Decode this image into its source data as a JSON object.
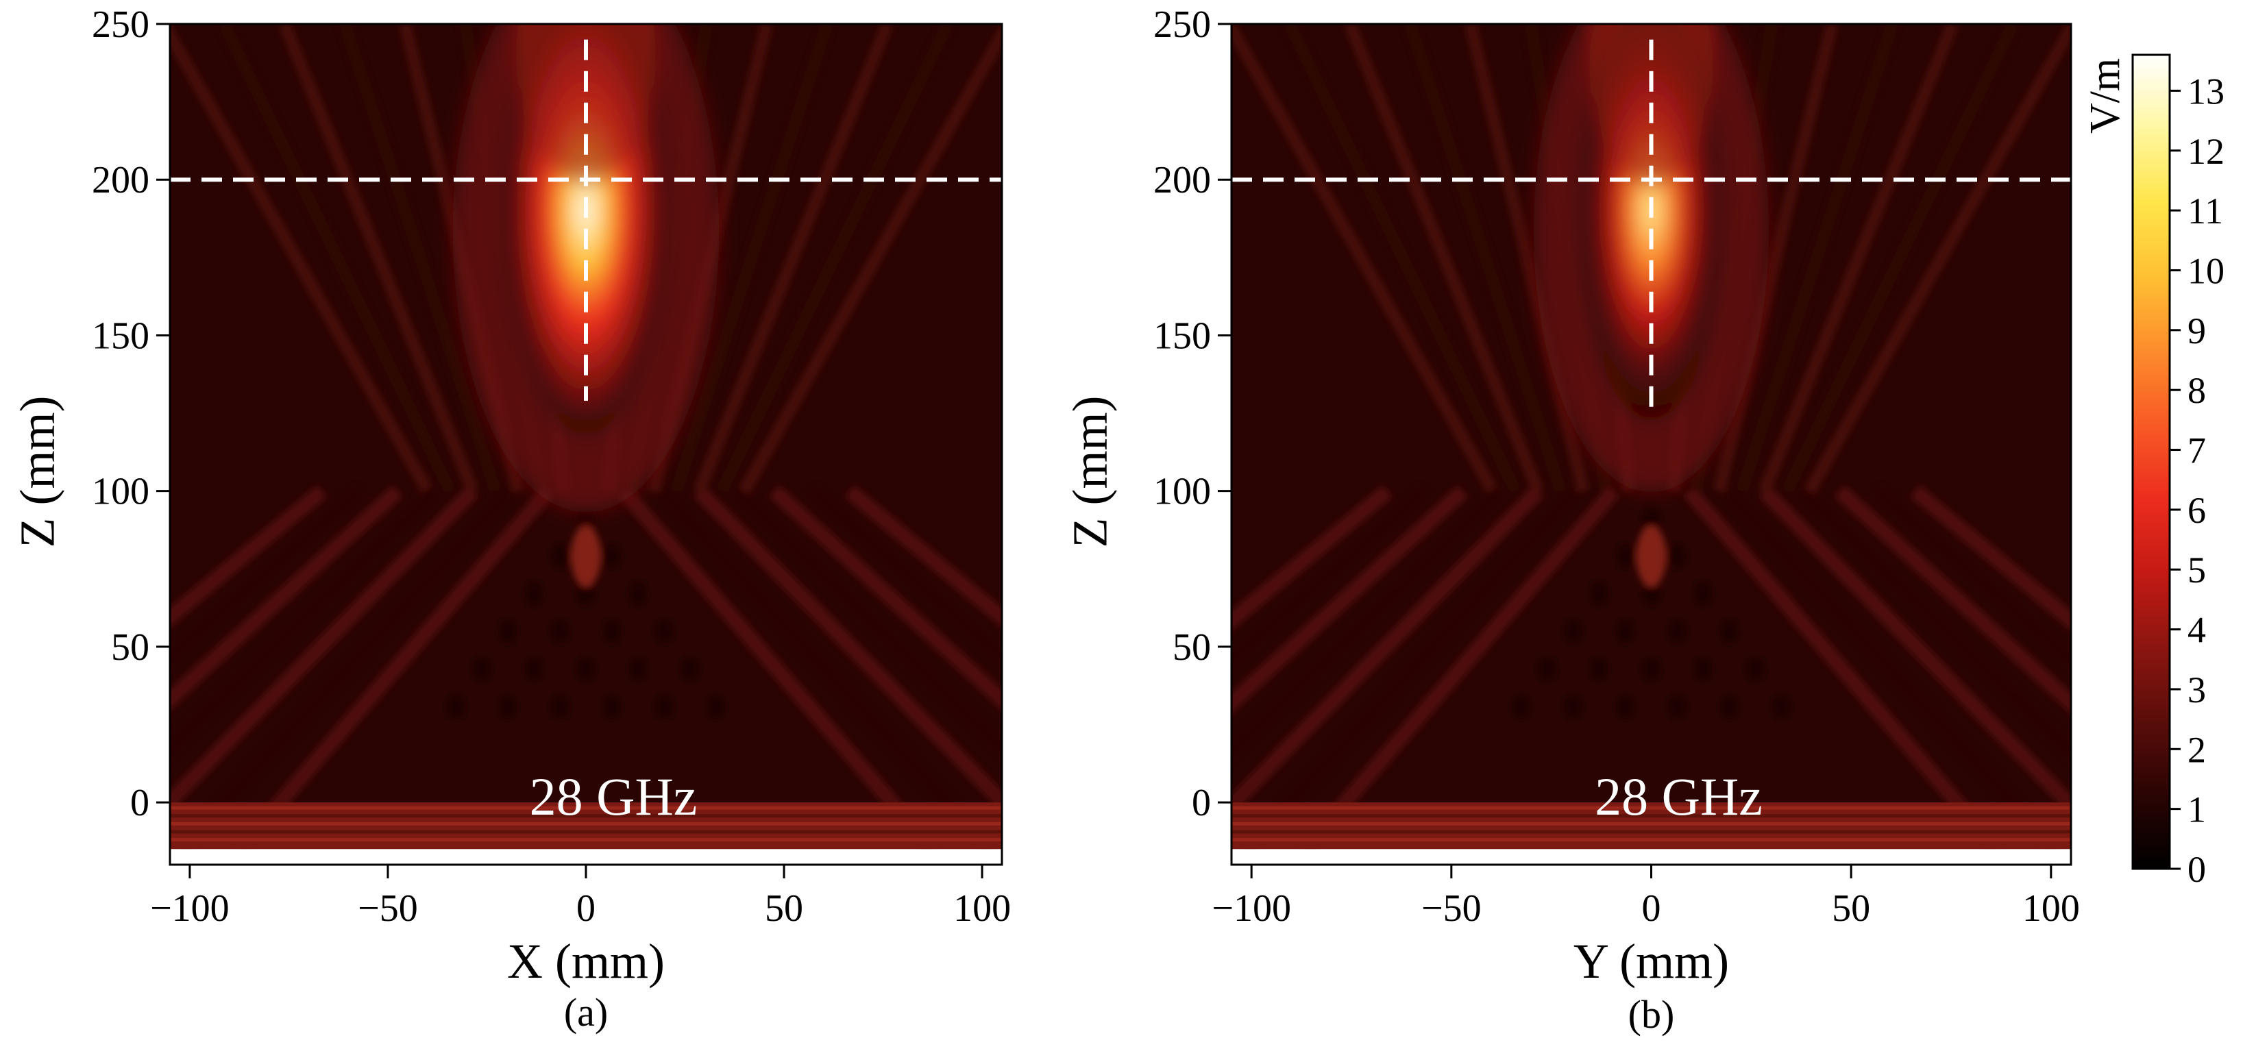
{
  "figure": {
    "colorbar": {
      "unit": "V/m",
      "ticks": [
        0,
        1,
        2,
        3,
        4,
        5,
        6,
        7,
        8,
        9,
        10,
        11,
        12,
        13
      ],
      "range": [
        0,
        13.6
      ],
      "colormap": "hot",
      "stops": [
        "#000000",
        "#2a0403",
        "#5a0d0a",
        "#8c1510",
        "#c41a14",
        "#ec2d1e",
        "#f85a25",
        "#fd8c2c",
        "#ffc034",
        "#ffe54a",
        "#fff7a0",
        "#ffffff"
      ]
    },
    "guide_color": "#ffffff"
  },
  "chart_data": [
    {
      "type": "heatmap",
      "panel_label": "(a)",
      "annotation": "28 GHz",
      "xlabel": "X (mm)",
      "ylabel": "Z (mm)",
      "xlim": [
        -105,
        105
      ],
      "ylim": [
        -20,
        250
      ],
      "xticks": [
        -100,
        -50,
        0,
        50,
        100
      ],
      "xtick_labels": [
        "−100",
        "−50",
        "0",
        "50",
        "100"
      ],
      "yticks": [
        0,
        50,
        100,
        150,
        200,
        250
      ],
      "ytick_labels": [
        "0",
        "50",
        "100",
        "150",
        "200",
        "250"
      ],
      "field": {
        "data_extent_z": [
          -15,
          250
        ],
        "background_v_per_m": 1.2,
        "focus": {
          "x": 0,
          "z": 190,
          "peak_v_per_m": 13,
          "half_width_x": 8,
          "half_length_z": 45
        },
        "x_pattern_apex": {
          "x": 0,
          "z": 100
        },
        "substrate_z": [
          -15,
          0
        ]
      },
      "guides": {
        "horizontal_z": 200,
        "vertical_x": 0,
        "vertical_z_range": [
          129,
          245
        ]
      }
    },
    {
      "type": "heatmap",
      "panel_label": "(b)",
      "annotation": "28 GHz",
      "xlabel": "Y (mm)",
      "ylabel": "Z (mm)",
      "xlim": [
        -105,
        105
      ],
      "ylim": [
        -20,
        250
      ],
      "xticks": [
        -100,
        -50,
        0,
        50,
        100
      ],
      "xtick_labels": [
        "−100",
        "−50",
        "0",
        "50",
        "100"
      ],
      "yticks": [
        0,
        50,
        100,
        150,
        200,
        250
      ],
      "ytick_labels": [
        "0",
        "50",
        "100",
        "150",
        "200",
        "250"
      ],
      "field": {
        "data_extent_z": [
          -15,
          250
        ],
        "background_v_per_m": 1.2,
        "focus": {
          "x": 0,
          "z": 190,
          "peak_v_per_m": 12,
          "half_width_x": 7,
          "half_length_z": 42
        },
        "x_pattern_apex": {
          "x": 0,
          "z": 100
        },
        "substrate_z": [
          -15,
          0
        ]
      },
      "guides": {
        "horizontal_z": 200,
        "vertical_x": 0,
        "vertical_z_range": [
          124,
          245
        ]
      }
    }
  ]
}
